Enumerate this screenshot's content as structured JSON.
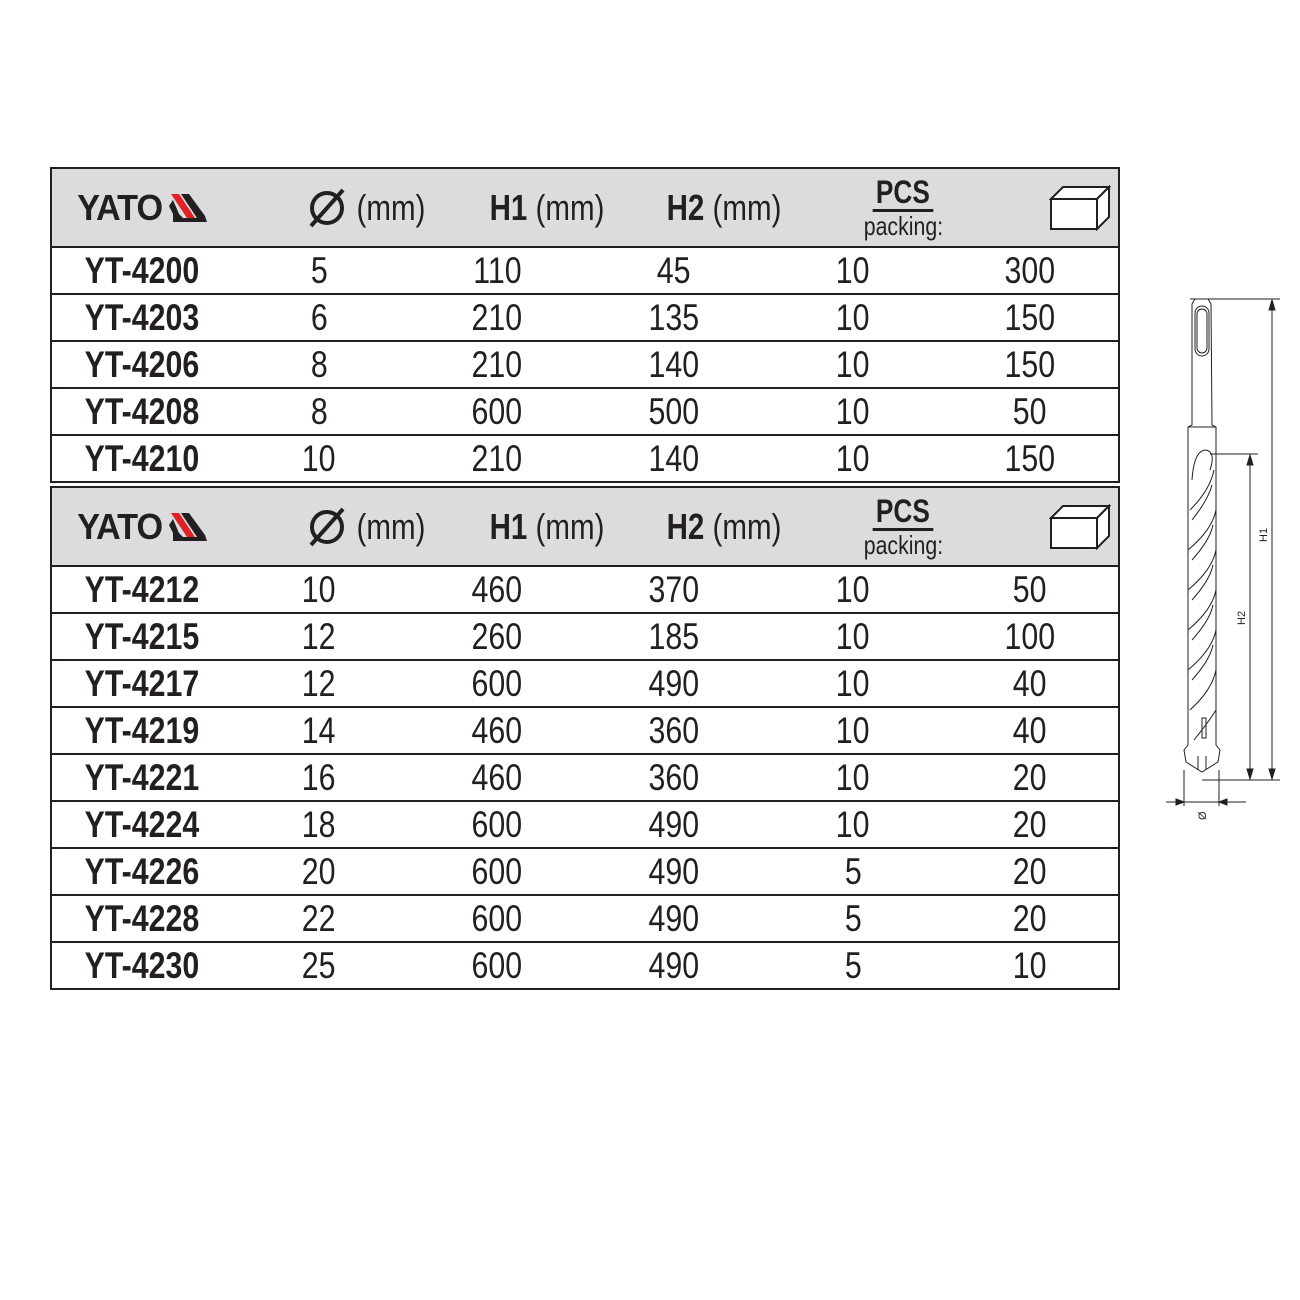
{
  "brand": "YATO",
  "colors": {
    "header_bg": "#dcdcde",
    "logo_red": "#e32124",
    "text": "#231f20"
  },
  "header": {
    "diameter_symbol": "Ø",
    "diameter_unit": "(mm)",
    "h1": "H1",
    "h1_unit": "(mm)",
    "h2": "H2",
    "h2_unit": "(mm)",
    "pcs": "PCS",
    "packing": "packing:",
    "box_icon": "box-icon"
  },
  "table1": [
    [
      "YT-4200",
      "5",
      "110",
      "45",
      "10",
      "300"
    ],
    [
      "YT-4203",
      "6",
      "210",
      "135",
      "10",
      "150"
    ],
    [
      "YT-4206",
      "8",
      "210",
      "140",
      "10",
      "150"
    ],
    [
      "YT-4208",
      "8",
      "600",
      "500",
      "10",
      "50"
    ],
    [
      "YT-4210",
      "10",
      "210",
      "140",
      "10",
      "150"
    ]
  ],
  "table2": [
    [
      "YT-4212",
      "10",
      "460",
      "370",
      "10",
      "50"
    ],
    [
      "YT-4215",
      "12",
      "260",
      "185",
      "10",
      "100"
    ],
    [
      "YT-4217",
      "12",
      "600",
      "490",
      "10",
      "40"
    ],
    [
      "YT-4219",
      "14",
      "460",
      "360",
      "10",
      "40"
    ],
    [
      "YT-4221",
      "16",
      "460",
      "360",
      "10",
      "20"
    ],
    [
      "YT-4224",
      "18",
      "600",
      "490",
      "10",
      "20"
    ],
    [
      "YT-4226",
      "20",
      "600",
      "490",
      "5",
      "20"
    ],
    [
      "YT-4228",
      "22",
      "600",
      "490",
      "5",
      "20"
    ],
    [
      "YT-4230",
      "25",
      "600",
      "490",
      "5",
      "10"
    ]
  ],
  "drawing": {
    "h1_label": "H1",
    "h2_label": "H2",
    "diameter_label": "Ø"
  }
}
